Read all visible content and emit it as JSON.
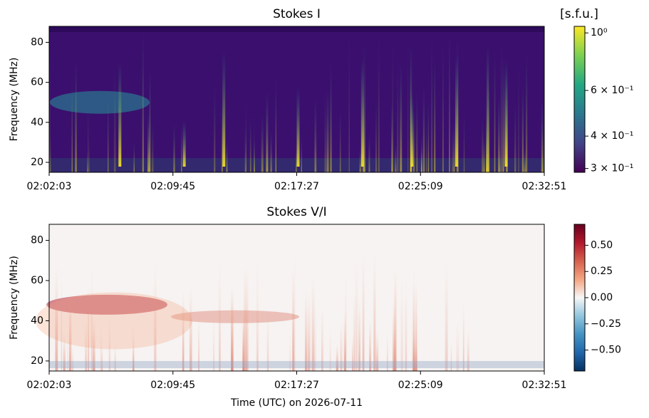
{
  "chart_data": [
    {
      "type": "heatmap",
      "title": "Stokes I",
      "ylabel": "Frequency (MHz)",
      "xticks": [
        "02:02:03",
        "02:09:45",
        "02:17:27",
        "02:25:09",
        "02:32:51"
      ],
      "ylim": [
        15,
        88
      ],
      "yticks": [
        20,
        40,
        60,
        80
      ],
      "colormap": "viridis",
      "colorbar_label": "[s.f.u.]",
      "colorbar_scale": "log",
      "clim": [
        0.29,
        1.06
      ],
      "colorbar_ticks": [
        {
          "value": 1,
          "label": "10⁰"
        },
        {
          "value": 0.6,
          "label": "6 × 10⁻¹"
        },
        {
          "value": 0.4,
          "label": "4 × 10⁻¹"
        },
        {
          "value": 0.3,
          "label": "3 × 10⁻¹"
        }
      ]
    },
    {
      "type": "heatmap",
      "title": "Stokes V/I",
      "ylabel": "Frequency (MHz)",
      "xlabel": "Time (UTC) on 2026-07-11",
      "xticks": [
        "02:02:03",
        "02:09:45",
        "02:17:27",
        "02:25:09",
        "02:32:51"
      ],
      "ylim": [
        15,
        88
      ],
      "yticks": [
        20,
        40,
        60,
        80
      ],
      "colormap": "RdBu_r",
      "colorbar_scale": "linear",
      "clim": [
        -0.7,
        0.7
      ],
      "colorbar_ticks": [
        {
          "value": 0.5,
          "label": "0.50"
        },
        {
          "value": 0.25,
          "label": "0.25"
        },
        {
          "value": 0,
          "label": "0.00"
        },
        {
          "value": -0.25,
          "label": "−0.25"
        },
        {
          "value": -0.5,
          "label": "−0.50"
        }
      ]
    }
  ]
}
